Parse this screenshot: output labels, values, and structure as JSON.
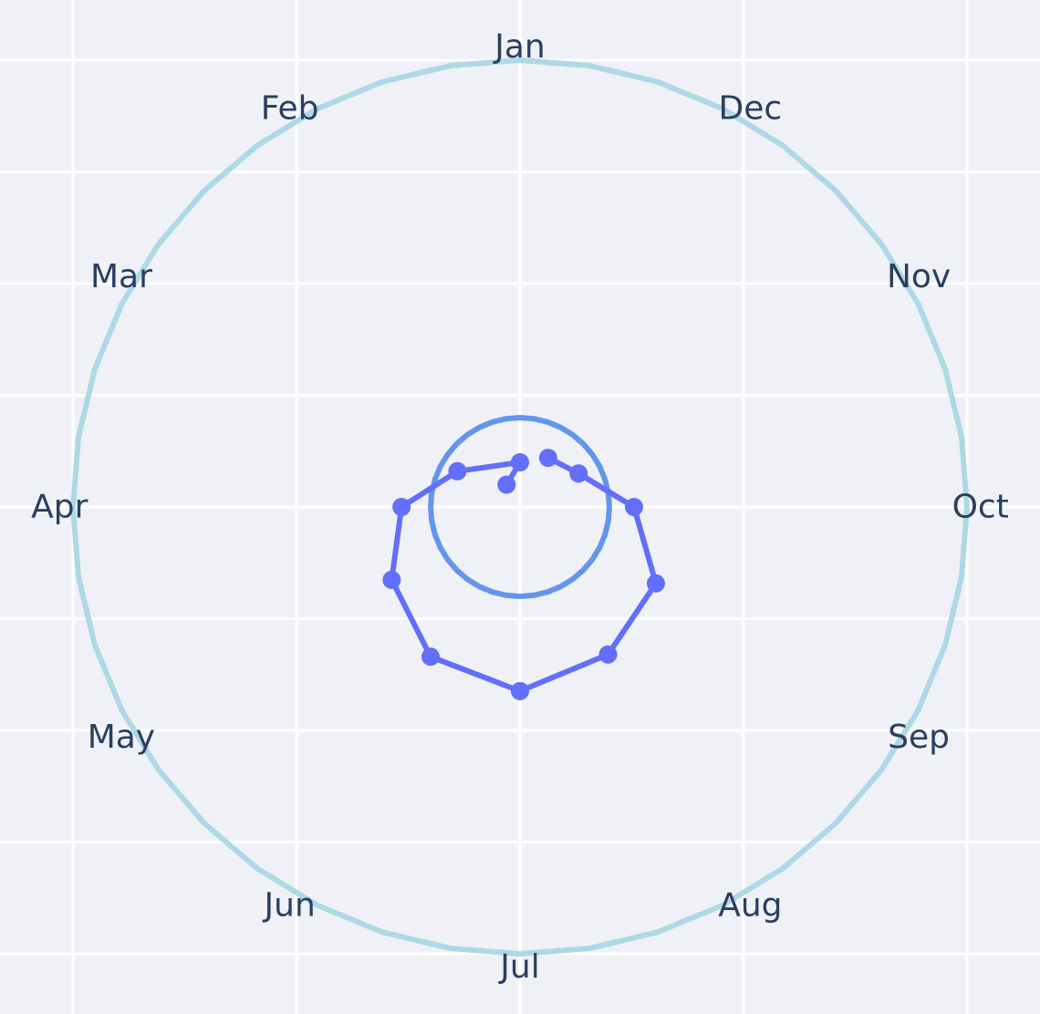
{
  "chart_data": {
    "type": "line",
    "description": "Polar-style line chart on a cartesian grid; months placed around a circle counter-clockwise starting with Jan at top.",
    "months": [
      "Jan",
      "Feb",
      "Mar",
      "Apr",
      "May",
      "Jun",
      "Jul",
      "Aug",
      "Sep",
      "Oct",
      "Nov",
      "Dec"
    ],
    "xlim": [
      -1.05,
      1.05
    ],
    "ylim": [
      -1.05,
      1.05
    ],
    "grid": true,
    "background_color": "#EFF1F6",
    "grid_color": "#FFFFFF",
    "series": [
      {
        "shape": "circle",
        "center": [
          0,
          0
        ],
        "radius": 1.0,
        "color": "#ADD8E6"
      },
      {
        "shape": "circle",
        "center": [
          0,
          0
        ],
        "radius": 0.2,
        "color": "#6495ED"
      },
      {
        "shape": "polyline",
        "color": "#636EFA",
        "markers": true,
        "x": [
          -0.03,
          0.0,
          -0.14,
          -0.265,
          -0.287,
          -0.2,
          0.0,
          0.197,
          0.304,
          0.255,
          0.131,
          0.063
        ],
        "y": [
          0.05,
          0.1,
          0.08,
          0.0,
          -0.163,
          -0.335,
          -0.412,
          -0.33,
          -0.171,
          0.0,
          0.075,
          0.11
        ]
      }
    ]
  }
}
